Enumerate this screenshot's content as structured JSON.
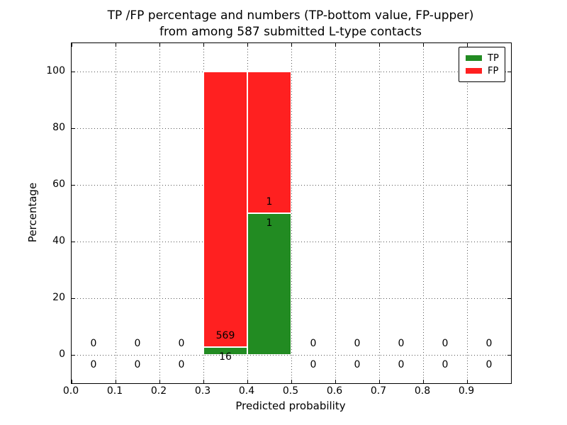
{
  "chart_data": {
    "type": "bar",
    "stacked": true,
    "title_line1": "TP /FP percentage and numbers (TP-bottom value, FP-upper)",
    "title_line2": "from among 587 submitted L-type contacts",
    "xlabel": "Predicted probability",
    "ylabel": "Percentage",
    "xlim": [
      0.0,
      1.0
    ],
    "ylim": [
      -10,
      110
    ],
    "grid": true,
    "x_ticks": [
      {
        "value": 0.0,
        "label": "0.0"
      },
      {
        "value": 0.1,
        "label": "0.1"
      },
      {
        "value": 0.2,
        "label": "0.2"
      },
      {
        "value": 0.3,
        "label": "0.3"
      },
      {
        "value": 0.4,
        "label": "0.4"
      },
      {
        "value": 0.5,
        "label": "0.5"
      },
      {
        "value": 0.6,
        "label": "0.6"
      },
      {
        "value": 0.7,
        "label": "0.7"
      },
      {
        "value": 0.8,
        "label": "0.8"
      },
      {
        "value": 0.9,
        "label": "0.9"
      }
    ],
    "y_ticks": [
      {
        "value": 0,
        "label": "0"
      },
      {
        "value": 20,
        "label": "20"
      },
      {
        "value": 40,
        "label": "40"
      },
      {
        "value": 60,
        "label": "60"
      },
      {
        "value": 80,
        "label": "80"
      },
      {
        "value": 100,
        "label": "100"
      }
    ],
    "bin_width": 0.1,
    "bins": [
      {
        "start": 0.0,
        "tp": 0,
        "fp": 0
      },
      {
        "start": 0.1,
        "tp": 0,
        "fp": 0
      },
      {
        "start": 0.2,
        "tp": 0,
        "fp": 0
      },
      {
        "start": 0.3,
        "tp": 16,
        "fp": 569
      },
      {
        "start": 0.4,
        "tp": 1,
        "fp": 1
      },
      {
        "start": 0.5,
        "tp": 0,
        "fp": 0
      },
      {
        "start": 0.6,
        "tp": 0,
        "fp": 0
      },
      {
        "start": 0.7,
        "tp": 0,
        "fp": 0
      },
      {
        "start": 0.8,
        "tp": 0,
        "fp": 0
      },
      {
        "start": 0.9,
        "tp": 0,
        "fp": 0
      }
    ],
    "colors": {
      "tp": "#228b22",
      "fp": "#ff2020",
      "grid": "#545454",
      "text": "#000000"
    },
    "legend": {
      "position": "upper right",
      "entries": [
        {
          "label": "TP",
          "color": "#228b22"
        },
        {
          "label": "FP",
          "color": "#ff2020"
        }
      ]
    }
  }
}
